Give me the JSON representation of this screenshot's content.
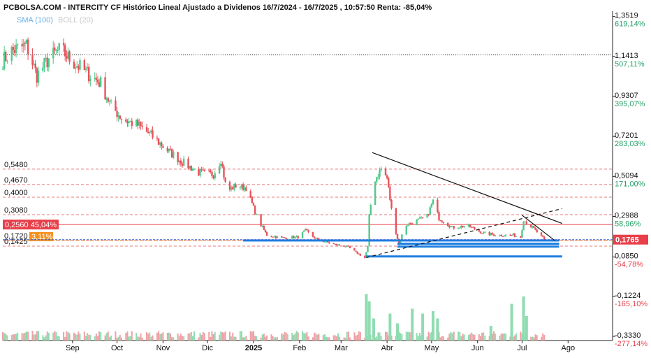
{
  "header": {
    "title": "PCBOLSA.COM - INTERCITY CF Histórico Lineal Ajustado a Dividenos 16/7/2024 - 16/7/2025 , 10:57:50 Renta: -85,04%",
    "indicators": [
      {
        "label": "SMA (100)",
        "color": "#6ab0e8"
      },
      {
        "label": "BOLL (20)",
        "color": "#c8c8c8"
      }
    ]
  },
  "colors": {
    "up": "#4fc98a",
    "down": "#e8525a",
    "vol_up": "#8fdcb0",
    "vol_down": "#f0a0a5",
    "trendline": "#111111",
    "support": "#1e7fe0",
    "level_line": "#e8787c",
    "pos_pct": "#26a269",
    "neg_pct": "#e8404a"
  },
  "chart_data": {
    "type": "candlestick",
    "title": "PCBOLSA.COM - INTERCITY CF Histórico Lineal Ajustado a Dividenos 16/7/2024 - 16/7/2025 , 10:57:50 Renta: -85,04%",
    "x_range": [
      "2024-07-16",
      "2025-08-31"
    ],
    "x_ticks": [
      "Sep",
      "Oct",
      "Nov",
      "Dic",
      "2025",
      "Feb",
      "Mar",
      "Abr",
      "May",
      "Jun",
      "Jul",
      "Ago"
    ],
    "x_tick_dates": [
      "2024-09-01",
      "2024-10-01",
      "2024-11-01",
      "2024-12-01",
      "2025-01-01",
      "2025-02-01",
      "2025-03-01",
      "2025-04-01",
      "2025-05-01",
      "2025-06-01",
      "2025-07-01",
      "2025-08-01"
    ],
    "y_range": [
      -0.355,
      1.38
    ],
    "right_axis": [
      {
        "price": "1,3519",
        "pct": "619,14%"
      },
      {
        "price": "1,1413",
        "pct": "507,11%"
      },
      {
        "price": "0,9307",
        "pct": "395,07%"
      },
      {
        "price": "0,7201",
        "pct": "283,03%"
      },
      {
        "price": "0,5094",
        "pct": "171,00%"
      },
      {
        "price": "0,2988",
        "pct": "58,96%"
      },
      {
        "price": "0,0850",
        "pct": "-54,78%"
      },
      {
        "price": "-0,1224",
        "pct": "-165,10%"
      },
      {
        "price": "-0,3330",
        "pct": "-277,14%"
      }
    ],
    "right_axis_values": [
      1.3519,
      1.1413,
      0.9307,
      0.7201,
      0.5094,
      0.2988,
      0.085,
      -0.1224,
      -0.333
    ],
    "last_price": {
      "label": "0,1765",
      "value": 0.1765
    },
    "horizontal_levels": [
      {
        "label": "0,5480",
        "value": 0.548
      },
      {
        "label": "0,4670",
        "value": 0.467
      },
      {
        "label": "0,4000",
        "value": 0.4
      },
      {
        "label": "0,3080",
        "value": 0.308
      },
      {
        "label": "0,1720",
        "value": 0.172
      },
      {
        "label": "0,1425",
        "value": 0.1425
      }
    ],
    "highlight_levels": [
      {
        "label": "0,2560",
        "pct": "45,04%",
        "value": 0.256
      },
      {
        "label": "0,1720",
        "pct": "3,11%",
        "value": 0.172
      }
    ],
    "reference_level": 1.15,
    "trendlines": [
      {
        "style": "solid",
        "from": [
          "2025-03-22",
          0.635
        ],
        "to": [
          "2025-07-28",
          0.262
        ]
      },
      {
        "style": "dashed",
        "from": [
          "2025-03-18",
          0.082
        ],
        "to": [
          "2025-07-28",
          0.34
        ]
      },
      {
        "style": "solid",
        "from": [
          "2025-07-01",
          0.305
        ],
        "to": [
          "2025-07-23",
          0.172
        ]
      }
    ],
    "support_bands": [
      {
        "from": "2024-12-25",
        "to": "2025-07-26",
        "value": 0.172
      },
      {
        "from": "2025-04-08",
        "to": "2025-07-26",
        "value": 0.155
      },
      {
        "from": "2025-04-08",
        "to": "2025-07-26",
        "value": 0.14
      },
      {
        "from": "2025-03-18",
        "to": "2025-07-28",
        "value": 0.088
      }
    ],
    "anchors": [
      [
        "2024-07-16",
        1.12
      ],
      [
        "2024-07-22",
        1.17
      ],
      [
        "2024-08-01",
        1.2
      ],
      [
        "2024-08-08",
        1.04
      ],
      [
        "2024-08-16",
        1.13
      ],
      [
        "2024-08-24",
        1.18
      ],
      [
        "2024-08-31",
        1.12
      ],
      [
        "2024-09-10",
        1.06
      ],
      [
        "2024-09-20",
        1.0
      ],
      [
        "2024-09-27",
        0.88
      ],
      [
        "2024-10-05",
        0.81
      ],
      [
        "2024-10-15",
        0.78
      ],
      [
        "2024-10-25",
        0.72
      ],
      [
        "2024-11-05",
        0.64
      ],
      [
        "2024-11-15",
        0.58
      ],
      [
        "2024-11-25",
        0.53
      ],
      [
        "2024-12-05",
        0.52
      ],
      [
        "2024-12-10",
        0.6
      ],
      [
        "2024-12-14",
        0.43
      ],
      [
        "2024-12-20",
        0.46
      ],
      [
        "2024-12-27",
        0.45
      ],
      [
        "2025-01-04",
        0.28
      ],
      [
        "2025-01-10",
        0.2
      ],
      [
        "2025-01-20",
        0.185
      ],
      [
        "2025-01-31",
        0.19
      ],
      [
        "2025-02-05",
        0.225
      ],
      [
        "2025-02-12",
        0.18
      ],
      [
        "2025-02-25",
        0.15
      ],
      [
        "2025-03-05",
        0.14
      ],
      [
        "2025-03-12",
        0.105
      ],
      [
        "2025-03-17",
        0.08
      ],
      [
        "2025-03-19",
        0.14
      ],
      [
        "2025-03-20",
        0.3
      ],
      [
        "2025-03-23",
        0.48
      ],
      [
        "2025-03-28",
        0.55
      ],
      [
        "2025-04-01",
        0.5
      ],
      [
        "2025-04-05",
        0.28
      ],
      [
        "2025-04-09",
        0.15
      ],
      [
        "2025-04-13",
        0.25
      ],
      [
        "2025-04-22",
        0.28
      ],
      [
        "2025-04-28",
        0.3
      ],
      [
        "2025-05-02",
        0.38
      ],
      [
        "2025-05-06",
        0.29
      ],
      [
        "2025-05-15",
        0.24
      ],
      [
        "2025-05-25",
        0.25
      ],
      [
        "2025-06-05",
        0.21
      ],
      [
        "2025-06-15",
        0.2
      ],
      [
        "2025-06-25",
        0.2
      ],
      [
        "2025-06-30",
        0.19
      ],
      [
        "2025-07-02",
        0.28
      ],
      [
        "2025-07-08",
        0.24
      ],
      [
        "2025-07-16",
        0.1765
      ]
    ],
    "volume_spikes": [
      {
        "date": "2025-03-18",
        "level": 0.95
      },
      {
        "date": "2025-03-20",
        "level": 0.8
      },
      {
        "date": "2025-03-23",
        "level": 0.45
      },
      {
        "date": "2025-04-03",
        "level": 0.55
      },
      {
        "date": "2025-04-08",
        "level": 0.35
      },
      {
        "date": "2025-04-18",
        "level": 0.65
      },
      {
        "date": "2025-04-25",
        "level": 0.55
      },
      {
        "date": "2025-05-02",
        "level": 0.6
      },
      {
        "date": "2025-05-05",
        "level": 0.45
      },
      {
        "date": "2025-06-10",
        "level": 0.3
      },
      {
        "date": "2025-06-24",
        "level": 0.75
      },
      {
        "date": "2025-07-02",
        "level": 0.9
      },
      {
        "date": "2025-07-04",
        "level": 0.5
      }
    ]
  }
}
